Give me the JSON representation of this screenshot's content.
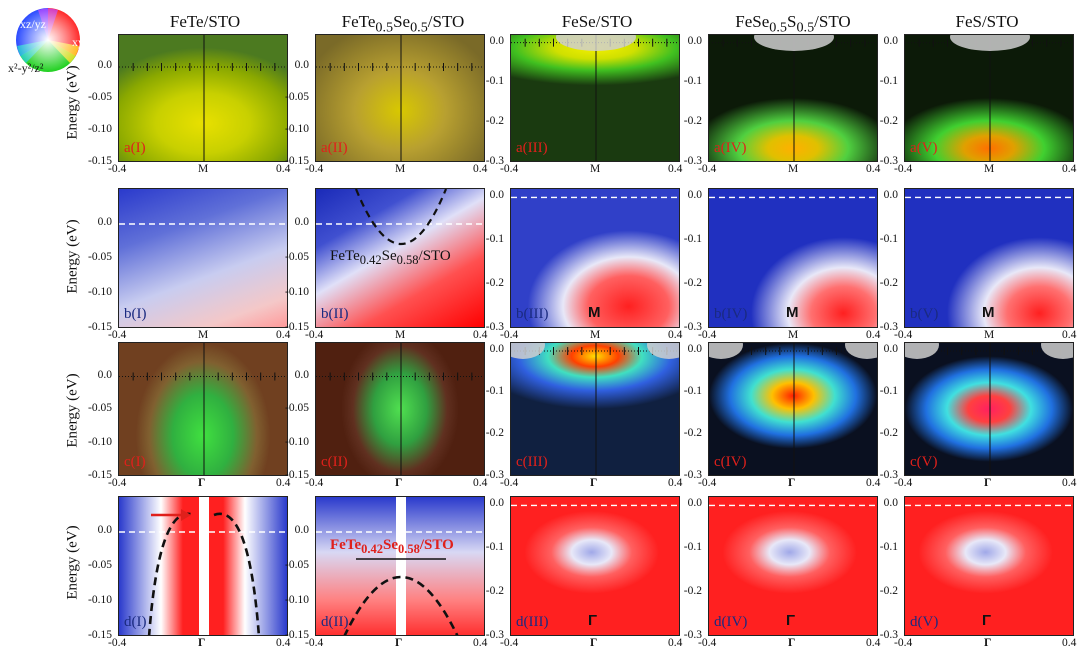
{
  "legend": {
    "top": "xz/yz",
    "right": "xy",
    "bottom": "x²-y²/z²"
  },
  "columns": [
    {
      "id": "FeTe",
      "label": "FeTe/STO"
    },
    {
      "id": "FeTeSe",
      "label_html": "FeTe<sub>0.5</sub>Se<sub>0.5</sub>/STO"
    },
    {
      "id": "FeSe",
      "label": "FeSe/STO"
    },
    {
      "id": "FeSeS",
      "label_html": "FeSe<sub>0.5</sub>S<sub>0.5</sub>/STO"
    },
    {
      "id": "FeS",
      "label": "FeS/STO"
    }
  ],
  "y_axis_label": "Energy (eV)",
  "x_ticks": [
    "-0.4",
    "0.4"
  ],
  "high_symmetry": {
    "M": "M",
    "Gamma": "Γ"
  },
  "y_ticks_shallow": [
    "0.0",
    "-0.05",
    "-0.10",
    "-0.15"
  ],
  "y_ticks_deep": [
    "0.0",
    "-0.1",
    "-0.2",
    "-0.3"
  ],
  "panel_labels": {
    "a": [
      "a(I)",
      "a(II)",
      "a(III)",
      "a(IV)",
      "a(V)"
    ],
    "b": [
      "b(I)",
      "b(II)",
      "b(III)",
      "b(IV)",
      "b(V)"
    ],
    "c": [
      "c(I)",
      "c(II)",
      "c(III)",
      "c(IV)",
      "c(V)"
    ],
    "d": [
      "d(I)",
      "d(II)",
      "d(III)",
      "d(IV)",
      "d(V)"
    ]
  },
  "insets": {
    "b2_html": "FeTe<sub>0.42</sub>Se<sub>0.58</sub>/STO",
    "d2_html": "FeTe<sub>0.42</sub>Se<sub>0.58</sub>/STO"
  },
  "colors": {
    "accent_red": "#e0201b",
    "label_blue": "#1a2a80"
  }
}
